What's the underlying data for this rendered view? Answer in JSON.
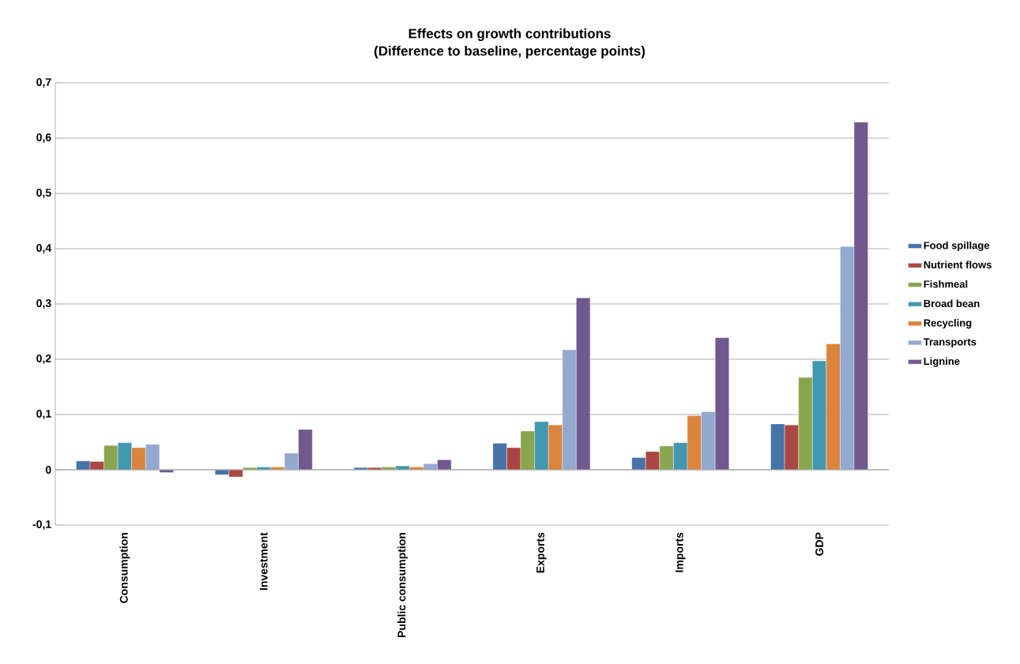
{
  "chart_data": {
    "type": "bar",
    "title": "Effects on growth contributions",
    "subtitle": "(Difference to baseline, percentage points)",
    "categories": [
      "Consumption",
      "Investment",
      "Public consumption",
      "Exports",
      "Imports",
      "GDP"
    ],
    "series": [
      {
        "name": "Food spillage",
        "color": "#4572a7",
        "values": [
          0.016,
          -0.009,
          0.004,
          0.048,
          0.022,
          0.083
        ]
      },
      {
        "name": "Nutrient flows",
        "color": "#aa4643",
        "values": [
          0.015,
          -0.013,
          0.004,
          0.04,
          0.033,
          0.081
        ]
      },
      {
        "name": "Fishmeal",
        "color": "#89a54e",
        "values": [
          0.044,
          0.004,
          0.005,
          0.07,
          0.043,
          0.167
        ]
      },
      {
        "name": "Broad bean",
        "color": "#4198af",
        "values": [
          0.049,
          0.005,
          0.007,
          0.087,
          0.049,
          0.197
        ]
      },
      {
        "name": "Recycling",
        "color": "#db843d",
        "values": [
          0.04,
          0.005,
          0.005,
          0.081,
          0.098,
          0.228
        ]
      },
      {
        "name": "Transports",
        "color": "#93a9cf",
        "values": [
          0.046,
          0.03,
          0.011,
          0.217,
          0.105,
          0.404
        ]
      },
      {
        "name": "Lignine",
        "color": "#71588f",
        "values": [
          -0.005,
          0.073,
          0.018,
          0.311,
          0.239,
          0.629
        ]
      }
    ],
    "ylim": [
      -0.1,
      0.7
    ],
    "yticks": [
      {
        "value": -0.1,
        "label": "-0,1"
      },
      {
        "value": 0,
        "label": "0"
      },
      {
        "value": 0.1,
        "label": "0,1"
      },
      {
        "value": 0.2,
        "label": "0,2"
      },
      {
        "value": 0.3,
        "label": "0,3"
      },
      {
        "value": 0.4,
        "label": "0,4"
      },
      {
        "value": 0.5,
        "label": "0,5"
      },
      {
        "value": 0.6,
        "label": "0,6"
      },
      {
        "value": 0.7,
        "label": "0,7"
      }
    ],
    "grid": "y",
    "legend": "right"
  }
}
